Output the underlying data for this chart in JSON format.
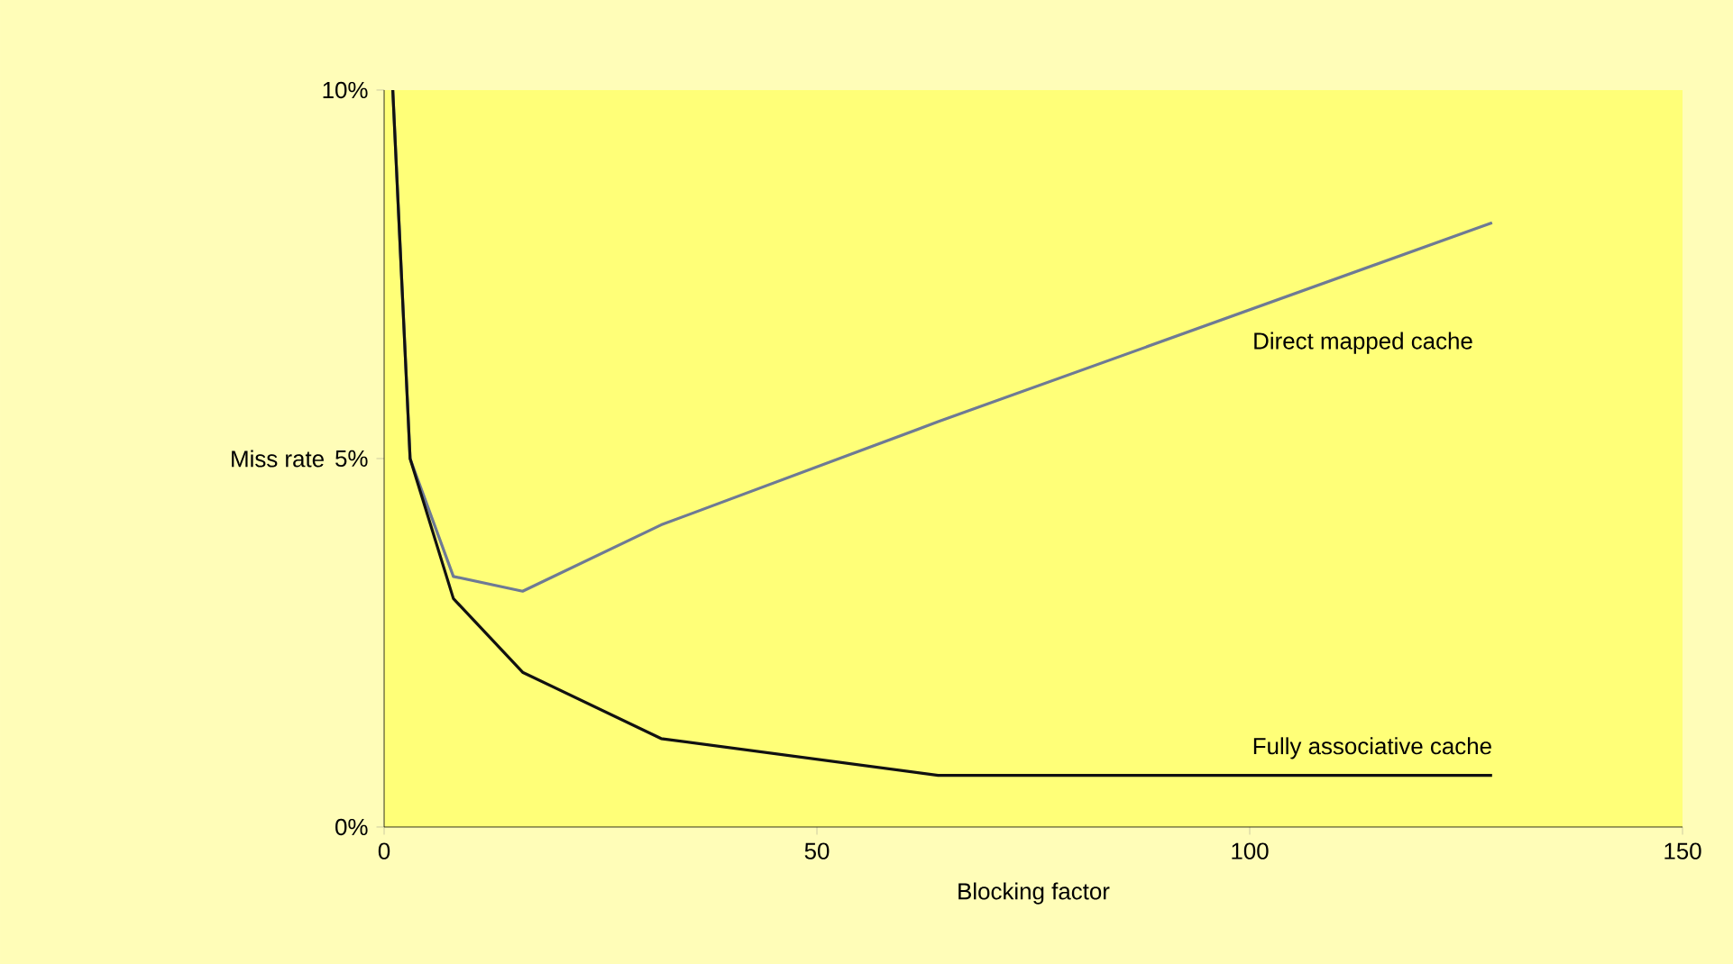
{
  "chart_data": {
    "type": "line",
    "xlabel": "Blocking factor",
    "ylabel": "Miss rate",
    "xlim": [
      0,
      150
    ],
    "xticks": [
      0,
      50,
      100,
      150
    ],
    "ylim": [
      0,
      10
    ],
    "yticks": [
      {
        "value": 0,
        "label": "0%"
      },
      {
        "value": 5,
        "label": "5%"
      },
      {
        "value": 10,
        "label": "10%"
      }
    ],
    "series": [
      {
        "name": "Direct mapped cache",
        "color": "#6e7a95",
        "x": [
          1,
          3,
          8,
          16,
          32,
          64,
          128
        ],
        "values": [
          10,
          5,
          3.4,
          3.2,
          4.1,
          5.5,
          8.2
        ]
      },
      {
        "name": "Fully associative cache",
        "color": "#111111",
        "x": [
          1,
          3,
          8,
          16,
          32,
          64,
          128
        ],
        "values": [
          10,
          5,
          3.1,
          2.1,
          1.2,
          0.7,
          0.7
        ]
      }
    ],
    "grid": false,
    "legend": false,
    "marker": "none",
    "line_style": "solid"
  }
}
